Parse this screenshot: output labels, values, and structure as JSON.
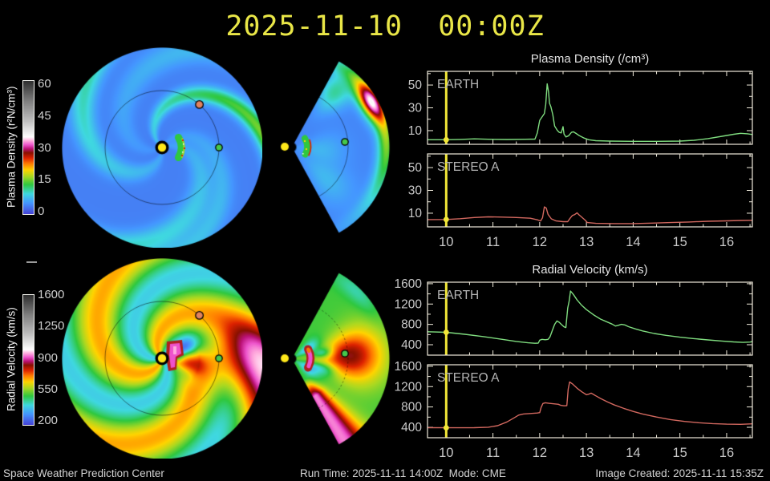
{
  "window": {
    "title_datetime": "2025-11-10  00:00Z"
  },
  "colorbars": [
    {
      "id": "plasma-density",
      "label": "Plasma Density (r²N/cm³)",
      "tick_labels": [
        "60",
        "45",
        "30",
        "15",
        "0"
      ]
    },
    {
      "id": "radial-velocity",
      "label": "Radial Velocity (km/s)",
      "tick_labels": [
        "1600",
        "1250",
        "900",
        "550",
        "200"
      ]
    }
  ],
  "maps": {
    "sun_color": "#ffe81a",
    "earth_marker_color": "#46c84b",
    "stereo_a_marker_color": "#e0825f",
    "cme_color": "#ee52cc"
  },
  "footer": {
    "left": "Space Weather Prediction Center",
    "center": "Run Time: 2025-11-11 14:00Z  Mode: CME",
    "right": "Image Created: 2025-11-11 15:35Z"
  },
  "chart_data": [
    {
      "id": "plasma-density-timeseries",
      "type": "line",
      "title": "Plasma Density (/cm³)",
      "xlim": [
        9.6,
        16.55
      ],
      "xticks": [
        10,
        11,
        12,
        13,
        14,
        15,
        16
      ],
      "x_minor_step": 0.5,
      "now_x": 10,
      "ylim": [
        -2,
        62
      ],
      "yticks_major": [
        10,
        30,
        50
      ],
      "yticks_minor": [
        20,
        40,
        60
      ],
      "panels": [
        {
          "label": "EARTH",
          "color": "#7fdc7f",
          "points": [
            [
              9.6,
              2
            ],
            [
              10.0,
              2
            ],
            [
              10.3,
              2.3
            ],
            [
              10.6,
              2.8
            ],
            [
              10.9,
              2.4
            ],
            [
              11.3,
              2.2
            ],
            [
              11.7,
              2.4
            ],
            [
              11.9,
              2.6
            ],
            [
              11.95,
              8
            ],
            [
              12.0,
              19
            ],
            [
              12.05,
              22
            ],
            [
              12.1,
              25
            ],
            [
              12.13,
              33
            ],
            [
              12.16,
              51
            ],
            [
              12.19,
              44
            ],
            [
              12.21,
              34
            ],
            [
              12.24,
              31
            ],
            [
              12.28,
              24
            ],
            [
              12.32,
              14
            ],
            [
              12.38,
              10
            ],
            [
              12.42,
              8.5
            ],
            [
              12.46,
              8
            ],
            [
              12.5,
              13.5
            ],
            [
              12.52,
              7
            ],
            [
              12.56,
              4.5
            ],
            [
              12.62,
              5.5
            ],
            [
              12.68,
              8.5
            ],
            [
              12.72,
              9
            ],
            [
              12.78,
              7.5
            ],
            [
              12.85,
              5.5
            ],
            [
              12.95,
              3.5
            ],
            [
              13.05,
              2
            ],
            [
              13.2,
              1.2
            ],
            [
              13.5,
              0.8
            ],
            [
              14.0,
              0.6
            ],
            [
              14.5,
              0.6
            ],
            [
              15.0,
              0.8
            ],
            [
              15.3,
              1.5
            ],
            [
              15.6,
              3
            ],
            [
              15.9,
              5
            ],
            [
              16.15,
              6.8
            ],
            [
              16.3,
              7.6
            ],
            [
              16.45,
              7.2
            ],
            [
              16.55,
              6.6
            ]
          ]
        },
        {
          "label": "STEREO A",
          "color": "#d2685f",
          "points": [
            [
              9.6,
              4.4
            ],
            [
              10.0,
              4.5
            ],
            [
              10.3,
              5.2
            ],
            [
              10.6,
              6.2
            ],
            [
              10.9,
              6.8
            ],
            [
              11.2,
              6.6
            ],
            [
              11.5,
              6.2
            ],
            [
              11.8,
              5.6
            ],
            [
              11.95,
              4.2
            ],
            [
              12.02,
              3.2
            ],
            [
              12.06,
              6
            ],
            [
              12.1,
              15.5
            ],
            [
              12.14,
              14.5
            ],
            [
              12.18,
              9
            ],
            [
              12.25,
              5
            ],
            [
              12.35,
              3.2
            ],
            [
              12.5,
              2.6
            ],
            [
              12.6,
              2.6
            ],
            [
              12.65,
              5.5
            ],
            [
              12.7,
              8
            ],
            [
              12.75,
              8.8
            ],
            [
              12.8,
              10.3
            ],
            [
              12.84,
              8.6
            ],
            [
              12.9,
              6.5
            ],
            [
              12.97,
              4
            ],
            [
              13.02,
              1.8
            ],
            [
              13.2,
              1.1
            ],
            [
              13.6,
              0.9
            ],
            [
              14.0,
              0.9
            ],
            [
              14.4,
              1.3
            ],
            [
              14.8,
              1.8
            ],
            [
              15.2,
              2.3
            ],
            [
              15.6,
              2.9
            ],
            [
              16.0,
              3.3
            ],
            [
              16.3,
              3.6
            ],
            [
              16.55,
              3.8
            ]
          ]
        }
      ]
    },
    {
      "id": "radial-velocity-timeseries",
      "type": "line",
      "title": "Radial Velocity (km/s)",
      "xlim": [
        9.6,
        16.55
      ],
      "xticks": [
        10,
        11,
        12,
        13,
        14,
        15,
        16
      ],
      "x_minor_step": 0.5,
      "now_x": 10,
      "ylim": [
        195,
        1630
      ],
      "yticks_major": [
        400,
        800,
        1200,
        1600
      ],
      "yticks_minor": [
        600,
        1000,
        1400
      ],
      "panels": [
        {
          "label": "EARTH",
          "color": "#7fdc7f",
          "points": [
            [
              9.6,
              655
            ],
            [
              10.0,
              645
            ],
            [
              10.4,
              605
            ],
            [
              10.8,
              560
            ],
            [
              11.2,
              505
            ],
            [
              11.5,
              465
            ],
            [
              11.75,
              438
            ],
            [
              11.9,
              428
            ],
            [
              11.97,
              432
            ],
            [
              12.0,
              490
            ],
            [
              12.05,
              505
            ],
            [
              12.12,
              498
            ],
            [
              12.18,
              505
            ],
            [
              12.22,
              555
            ],
            [
              12.27,
              680
            ],
            [
              12.32,
              800
            ],
            [
              12.37,
              868
            ],
            [
              12.42,
              840
            ],
            [
              12.47,
              795
            ],
            [
              12.52,
              752
            ],
            [
              12.56,
              738
            ],
            [
              12.6,
              1120
            ],
            [
              12.63,
              1260
            ],
            [
              12.66,
              1455
            ],
            [
              12.72,
              1390
            ],
            [
              12.8,
              1280
            ],
            [
              12.9,
              1175
            ],
            [
              13.0,
              1090
            ],
            [
              13.15,
              990
            ],
            [
              13.3,
              905
            ],
            [
              13.45,
              845
            ],
            [
              13.55,
              805
            ],
            [
              13.62,
              768
            ],
            [
              13.68,
              782
            ],
            [
              13.75,
              800
            ],
            [
              13.82,
              790
            ],
            [
              13.9,
              755
            ],
            [
              14.05,
              710
            ],
            [
              14.2,
              672
            ],
            [
              14.45,
              620
            ],
            [
              14.7,
              585
            ],
            [
              15.0,
              548
            ],
            [
              15.3,
              520
            ],
            [
              15.6,
              495
            ],
            [
              15.9,
              472
            ],
            [
              16.15,
              455
            ],
            [
              16.35,
              445
            ],
            [
              16.5,
              452
            ],
            [
              16.55,
              462
            ]
          ]
        },
        {
          "label": "STEREO A",
          "color": "#d2685f",
          "points": [
            [
              9.6,
              392
            ],
            [
              10.2,
              390
            ],
            [
              10.6,
              392
            ],
            [
              10.9,
              402
            ],
            [
              11.1,
              432
            ],
            [
              11.3,
              505
            ],
            [
              11.45,
              585
            ],
            [
              11.55,
              640
            ],
            [
              11.65,
              662
            ],
            [
              11.8,
              672
            ],
            [
              11.95,
              680
            ],
            [
              12.0,
              688
            ],
            [
              12.03,
              790
            ],
            [
              12.07,
              868
            ],
            [
              12.12,
              882
            ],
            [
              12.2,
              872
            ],
            [
              12.3,
              862
            ],
            [
              12.4,
              852
            ],
            [
              12.45,
              832
            ],
            [
              12.52,
              822
            ],
            [
              12.58,
              825
            ],
            [
              12.61,
              1150
            ],
            [
              12.64,
              1292
            ],
            [
              12.7,
              1255
            ],
            [
              12.8,
              1168
            ],
            [
              12.9,
              1098
            ],
            [
              13.0,
              1040
            ],
            [
              13.05,
              1052
            ],
            [
              13.1,
              1072
            ],
            [
              13.16,
              1040
            ],
            [
              13.3,
              968
            ],
            [
              13.45,
              898
            ],
            [
              13.6,
              838
            ],
            [
              13.8,
              772
            ],
            [
              14.0,
              712
            ],
            [
              14.2,
              662
            ],
            [
              14.5,
              602
            ],
            [
              14.8,
              552
            ],
            [
              15.1,
              515
            ],
            [
              15.4,
              490
            ],
            [
              15.7,
              472
            ],
            [
              16.0,
              462
            ],
            [
              16.3,
              458
            ],
            [
              16.55,
              468
            ]
          ]
        }
      ]
    }
  ]
}
